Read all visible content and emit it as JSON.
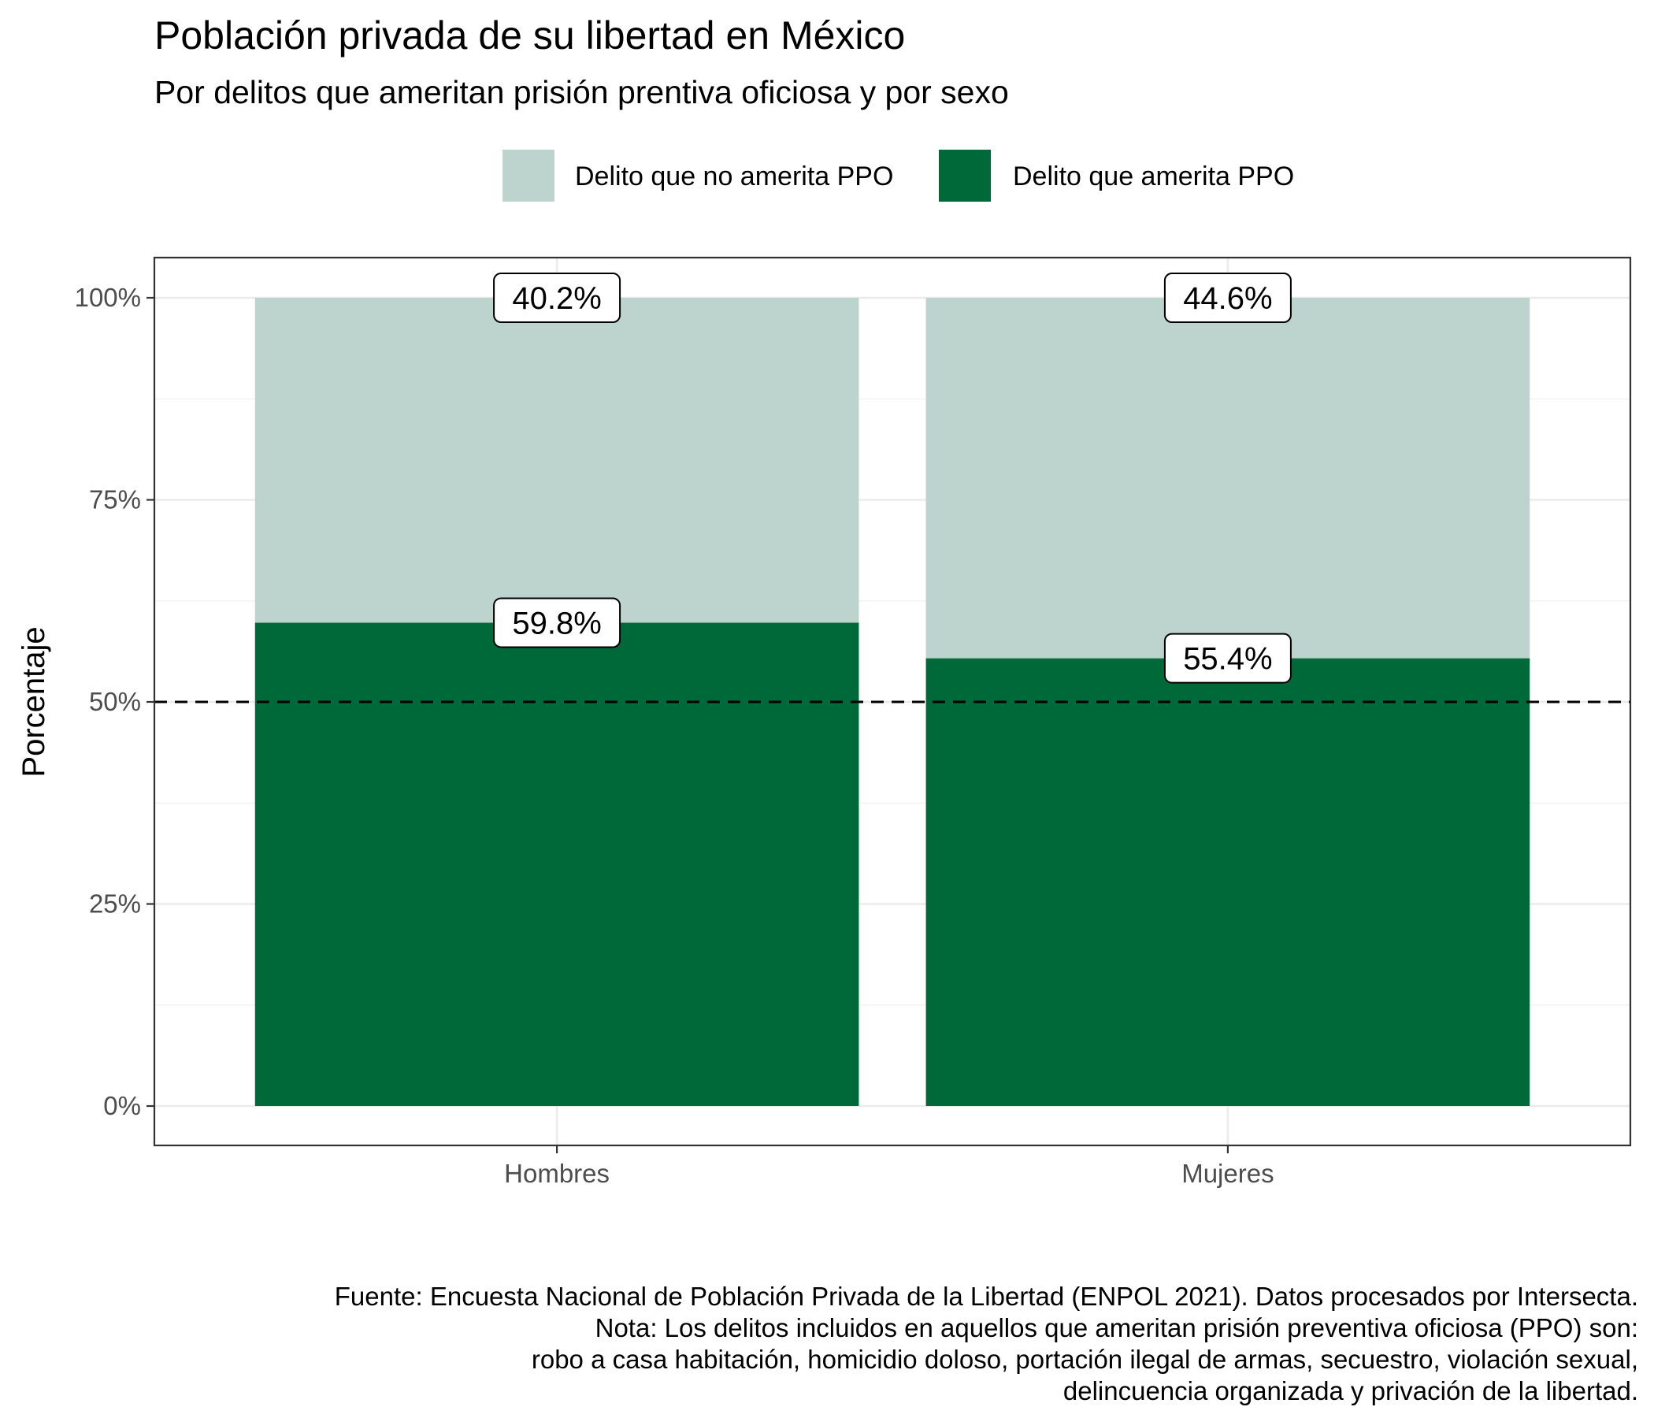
{
  "title": "Población privada de su libertad en México",
  "subtitle": "Por delitos que ameritan prisión prentiva oficiosa y por sexo",
  "caption": [
    "Fuente: Encuesta Nacional de Población Privada de la Libertad (ENPOL 2021). Datos procesados por Intersecta.",
    "Nota: Los delitos incluidos en aquellos que ameritan prisión preventiva oficiosa (PPO) son:",
    "robo a casa habitación, homicidio doloso, portación ilegal de armas, secuestro, violación sexual,",
    "delincuencia organizada y privación de la libertad."
  ],
  "chart_data": {
    "type": "bar",
    "stacked": true,
    "categories": [
      "Hombres",
      "Mujeres"
    ],
    "series": [
      {
        "name": "Delito que amerita PPO",
        "values": [
          59.8,
          55.4
        ],
        "labels": [
          "59.8%",
          "55.4%"
        ],
        "color": "#00693A"
      },
      {
        "name": "Delito que no amerita PPO",
        "values": [
          40.2,
          44.6
        ],
        "labels": [
          "40.2%",
          "44.6%"
        ],
        "color": "#BCD4CD"
      }
    ],
    "legend_order": [
      "Delito que no amerita PPO",
      "Delito que amerita PPO"
    ],
    "legend_position": "top",
    "xlabel": "",
    "ylabel": "Porcentaje",
    "ylim": [
      0,
      100
    ],
    "yticks": [
      0,
      25,
      50,
      75,
      100
    ],
    "ytick_labels": [
      "0%",
      "25%",
      "50%",
      "75%",
      "100%"
    ],
    "reference_line": {
      "y": 50,
      "style": "dashed",
      "color": "#000000"
    },
    "grid": true
  }
}
